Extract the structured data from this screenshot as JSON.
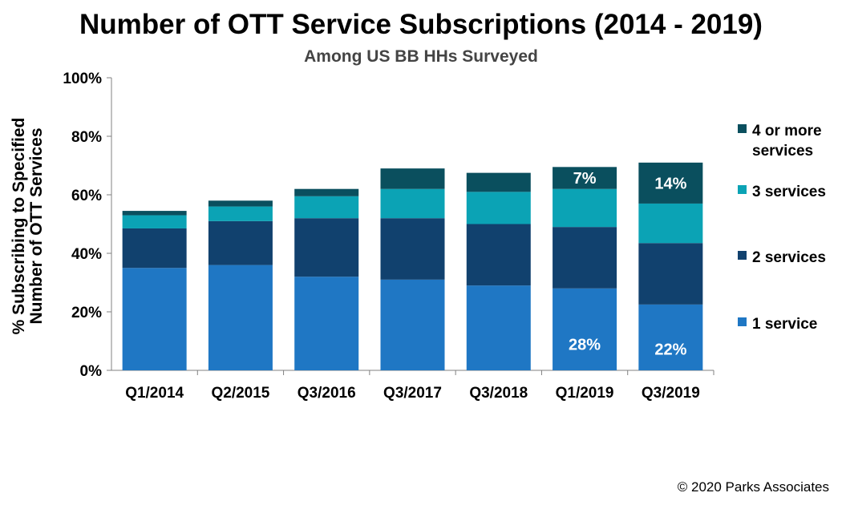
{
  "chart_data": {
    "type": "bar",
    "stacked": true,
    "title": "Number of OTT Service Subscriptions (2014 - 2019)",
    "subtitle": "Among US BB HHs Surveyed",
    "ylabel_lines": [
      "% Subscribing to Specified",
      "Number of OTT Services"
    ],
    "xlabel": "",
    "ylim": [
      0,
      100
    ],
    "yticks": [
      "0%",
      "20%",
      "40%",
      "60%",
      "80%",
      "100%"
    ],
    "categories": [
      "Q1/2014",
      "Q2/2015",
      "Q3/2016",
      "Q3/2017",
      "Q3/2018",
      "Q1/2019",
      "Q3/2019"
    ],
    "series": [
      {
        "name": "1 service",
        "color": "#1f77c4",
        "values": [
          35,
          36,
          32,
          31,
          29,
          28,
          22.5
        ]
      },
      {
        "name": "2 services",
        "color": "#11416e",
        "values": [
          13.5,
          15,
          20,
          21,
          21,
          21,
          21
        ]
      },
      {
        "name": "3 services",
        "color": "#0ba3b5",
        "values": [
          4.5,
          5,
          7.5,
          10,
          11,
          13,
          13.5
        ]
      },
      {
        "name": "4 or more services",
        "legend_lines": [
          "4 or more",
          "services"
        ],
        "color": "#0a4f5e",
        "values": [
          1.5,
          2,
          2.5,
          7,
          6.5,
          7.5,
          14
        ]
      }
    ],
    "data_labels": [
      {
        "series": 0,
        "category": 5,
        "text": "28%"
      },
      {
        "series": 0,
        "category": 6,
        "text": "22%"
      },
      {
        "series": 3,
        "category": 5,
        "text": "7%"
      },
      {
        "series": 3,
        "category": 6,
        "text": "14%"
      }
    ],
    "grid": false,
    "legend_position": "right"
  },
  "footer": {
    "copyright": "© 2020 Parks Associates"
  }
}
